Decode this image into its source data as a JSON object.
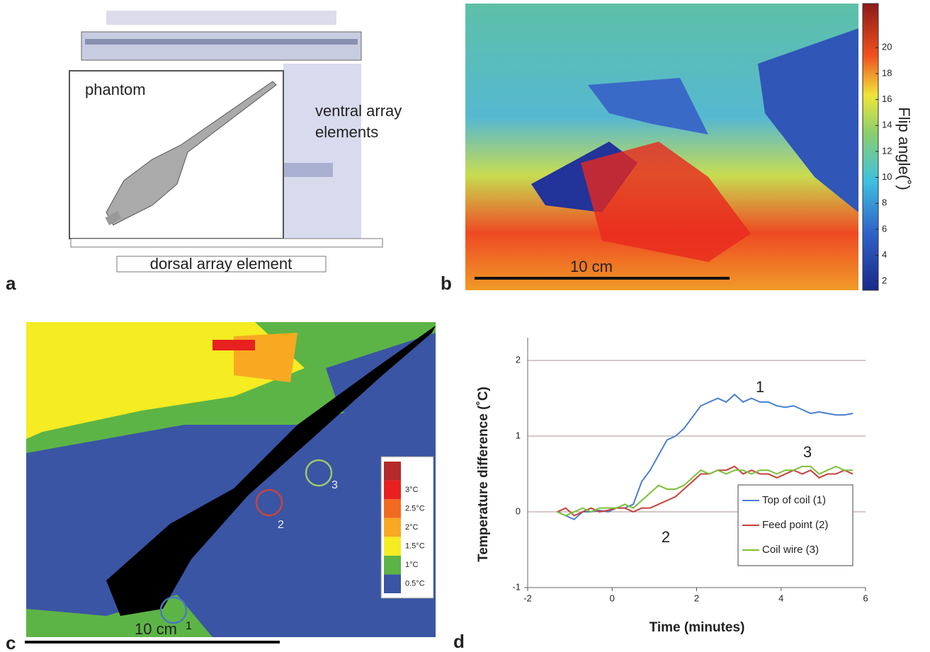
{
  "figure": {
    "panel_labels": [
      "a",
      "b",
      "c",
      "d"
    ]
  },
  "panel_a": {
    "phantom_label": "phantom",
    "ventral_label": [
      "ventral array",
      "elements"
    ],
    "dorsal_label": "dorsal array element"
  },
  "panel_b": {
    "colorbar_label": "Flip angle(˚)",
    "clim": [
      1.3,
      23.4
    ],
    "colorbar_ticks": [
      2,
      4,
      6,
      8,
      10,
      12,
      14,
      16,
      18,
      20
    ],
    "scale_bar": "10 cm"
  },
  "panel_c": {
    "clim": [
      0.25,
      3.75
    ],
    "colors": [
      "#3a55a4",
      "#5db446",
      "#f5ec22",
      "#f8a921",
      "#f26a22",
      "#e8201f",
      "#b52a2a"
    ],
    "legend": [
      {
        "value": 0.5,
        "label": "0.5°C"
      },
      {
        "value": 1,
        "label": "1°C"
      },
      {
        "value": 1.5,
        "label": "1.5°C"
      },
      {
        "value": 2,
        "label": "2°C"
      },
      {
        "value": 2.5,
        "label": "2.5°C"
      },
      {
        "value": 3,
        "label": "3°C"
      }
    ],
    "roi_labels": [
      "1",
      "2",
      "3"
    ],
    "roi_colors": [
      "#4a78c0",
      "#c8443c",
      "#9cc86a"
    ],
    "scale_bar": "10 cm"
  },
  "chart_data": {
    "type": "line",
    "x_label": "Time (minutes)",
    "y_label": "Temperature difference (˚C)",
    "x": [
      -1.3,
      -1.1,
      -0.9,
      -0.7,
      -0.5,
      -0.3,
      -0.1,
      0.1,
      0.3,
      0.5,
      0.7,
      0.9,
      1.1,
      1.3,
      1.5,
      1.7,
      1.9,
      2.1,
      2.3,
      2.5,
      2.7,
      2.9,
      3.1,
      3.3,
      3.5,
      3.7,
      3.9,
      4.1,
      4.3,
      4.5,
      4.7,
      4.9,
      5.1,
      5.3,
      5.5,
      5.7
    ],
    "series": [
      {
        "name": "Top of coil (1)",
        "color": "#4a7fd0",
        "values": [
          0,
          -0.05,
          -0.1,
          0,
          0,
          0.02,
          0,
          0.05,
          0.05,
          0.1,
          0.4,
          0.55,
          0.75,
          0.95,
          1.0,
          1.1,
          1.25,
          1.4,
          1.45,
          1.5,
          1.45,
          1.55,
          1.45,
          1.5,
          1.45,
          1.45,
          1.4,
          1.38,
          1.4,
          1.35,
          1.3,
          1.32,
          1.3,
          1.28,
          1.28,
          1.3
        ]
      },
      {
        "name": "Feed point (2)",
        "color": "#c8403a",
        "values": [
          0,
          0.05,
          -0.05,
          0,
          0.05,
          0,
          0.02,
          0.05,
          0.05,
          0,
          0.05,
          0.05,
          0.1,
          0.15,
          0.2,
          0.3,
          0.4,
          0.5,
          0.5,
          0.55,
          0.55,
          0.6,
          0.5,
          0.55,
          0.5,
          0.5,
          0.45,
          0.5,
          0.55,
          0.5,
          0.55,
          0.45,
          0.5,
          0.5,
          0.55,
          0.5
        ]
      },
      {
        "name": "Coil wire (3)",
        "color": "#7cc03a",
        "values": [
          0,
          -0.05,
          0,
          0.05,
          0,
          0.05,
          0.05,
          0.05,
          0.1,
          0.05,
          0.15,
          0.25,
          0.35,
          0.3,
          0.3,
          0.35,
          0.45,
          0.55,
          0.5,
          0.55,
          0.5,
          0.55,
          0.55,
          0.5,
          0.55,
          0.55,
          0.5,
          0.55,
          0.55,
          0.6,
          0.6,
          0.5,
          0.55,
          0.6,
          0.55,
          0.55
        ]
      }
    ],
    "annotations": [
      "1",
      "2",
      "3"
    ],
    "xlim": [
      -2,
      6
    ],
    "ylim": [
      -1,
      2.3
    ],
    "xticks": [
      -2,
      0,
      2,
      4,
      6
    ],
    "yticks": [
      -1,
      0,
      1,
      2
    ],
    "grid": true,
    "legend": "lower right"
  }
}
